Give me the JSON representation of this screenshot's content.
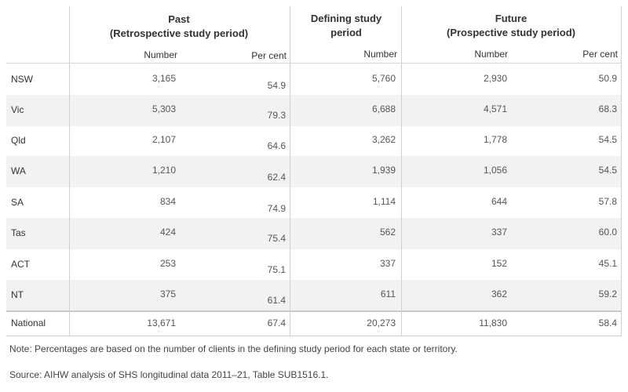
{
  "header": {
    "group_past_line1": "Past",
    "group_past_line2": "(Retrospective study period)",
    "group_defining_line1": "Defining study",
    "group_defining_line2": "period",
    "group_future_line1": "Future",
    "group_future_line2": "(Prospective study period)",
    "sub_past_number": "Number",
    "sub_past_percent": "Per cent",
    "sub_defining_number": "Number",
    "sub_future_number": "Number",
    "sub_future_percent": "Per cent"
  },
  "rows": [
    {
      "state": "NSW",
      "past_number": "3,165",
      "past_percent": "54.9",
      "defining_number": "5,760",
      "future_number": "2,930",
      "future_percent": "50.9"
    },
    {
      "state": "Vic",
      "past_number": "5,303",
      "past_percent": "79.3",
      "defining_number": "6,688",
      "future_number": "4,571",
      "future_percent": "68.3"
    },
    {
      "state": "Qld",
      "past_number": "2,107",
      "past_percent": "64.6",
      "defining_number": "3,262",
      "future_number": "1,778",
      "future_percent": "54.5"
    },
    {
      "state": "WA",
      "past_number": "1,210",
      "past_percent": "62.4",
      "defining_number": "1,939",
      "future_number": "1,056",
      "future_percent": "54.5"
    },
    {
      "state": "SA",
      "past_number": "834",
      "past_percent": "74.9",
      "defining_number": "1,114",
      "future_number": "644",
      "future_percent": "57.8"
    },
    {
      "state": "Tas",
      "past_number": "424",
      "past_percent": "75.4",
      "defining_number": "562",
      "future_number": "337",
      "future_percent": "60.0"
    },
    {
      "state": "ACT",
      "past_number": "253",
      "past_percent": "75.1",
      "defining_number": "337",
      "future_number": "152",
      "future_percent": "45.1"
    },
    {
      "state": "NT",
      "past_number": "375",
      "past_percent": "61.4",
      "defining_number": "611",
      "future_number": "362",
      "future_percent": "59.2"
    }
  ],
  "total": {
    "state": "National",
    "past_number": "13,671",
    "past_percent": "67.4",
    "defining_number": "20,273",
    "future_number": "11,830",
    "future_percent": "58.4"
  },
  "note": "Note: Percentages are based on the number of clients in the defining study period for each state or territory.",
  "source": "Source: AIHW analysis of SHS longitudinal data 2011–21, Table SUB1516.1."
}
